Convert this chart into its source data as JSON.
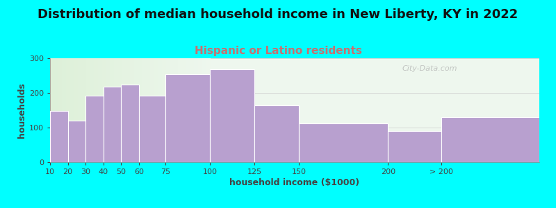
{
  "title": "Distribution of median household income in New Liberty, KY in 2022",
  "subtitle": "Hispanic or Latino residents",
  "xlabel": "household income ($1000)",
  "ylabel": "households",
  "background_outer": "#00FFFF",
  "background_inner_left": "#ddf0d8",
  "background_inner_right": "#eef7ee",
  "bar_color": "#b8a0cf",
  "bar_edge_color": "#ffffff",
  "bar_left_edges": [
    10,
    20,
    30,
    40,
    50,
    60,
    75,
    100,
    125,
    150,
    200,
    230
  ],
  "bar_widths": [
    10,
    10,
    10,
    10,
    10,
    15,
    25,
    25,
    25,
    50,
    30,
    55
  ],
  "values": [
    148,
    120,
    193,
    218,
    225,
    193,
    255,
    268,
    165,
    113,
    90,
    130
  ],
  "xlim": [
    10,
    285
  ],
  "ylim": [
    0,
    300
  ],
  "yticks": [
    0,
    100,
    200,
    300
  ],
  "xtick_positions": [
    10,
    20,
    30,
    40,
    50,
    60,
    75,
    100,
    125,
    150,
    200,
    230
  ],
  "xtick_labels": [
    "10",
    "20",
    "30",
    "40",
    "50",
    "60",
    "75",
    "100",
    "125",
    "150",
    "200",
    "> 200"
  ],
  "title_fontsize": 13,
  "subtitle_fontsize": 11,
  "subtitle_color": "#c87070",
  "axis_label_fontsize": 9,
  "tick_fontsize": 8,
  "watermark_text": "City-Data.com"
}
